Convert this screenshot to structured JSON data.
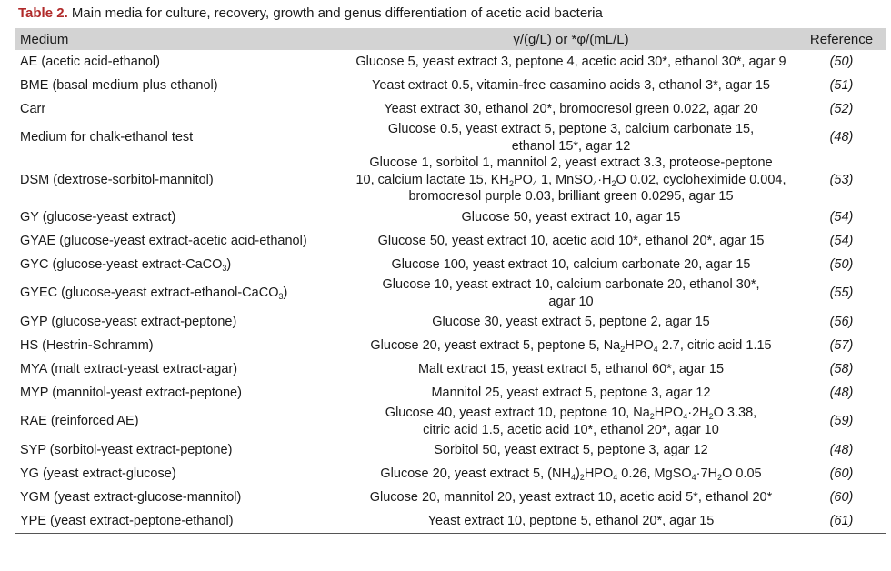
{
  "caption": {
    "label": "Table 2.",
    "text": "Main media for culture, recovery, growth and genus differentiation of acetic acid bacteria"
  },
  "header": {
    "medium": "Medium",
    "composition": "γ/(g/L) or *φ/(mL/L)",
    "reference": "Reference"
  },
  "rows": [
    {
      "medium": [
        "AE (acetic acid-ethanol)"
      ],
      "composition": [
        "Glucose 5, yeast extract 3, peptone 4, acetic acid 30*, ethanol 30*, agar 9"
      ],
      "ref": "(50)"
    },
    {
      "medium": [
        "BME (basal medium plus ethanol)"
      ],
      "composition": [
        "Yeast extract 0.5, vitamin-free casamino acids 3, ethanol 3*, agar 15"
      ],
      "ref": "(51)"
    },
    {
      "medium": [
        "Carr"
      ],
      "composition": [
        "Yeast extract 30, ethanol 20*, bromocresol green 0.022, agar 20"
      ],
      "ref": "(52)"
    },
    {
      "medium": [
        "Medium for chalk-ethanol test"
      ],
      "composition": [
        "Glucose 0.5, yeast extract 5, peptone 3, calcium carbonate 15,",
        "ethanol 15*, agar 12"
      ],
      "ref": "(48)"
    },
    {
      "medium": [
        "DSM (dextrose-sorbitol-mannitol)"
      ],
      "composition": [
        "Glucose 1, sorbitol 1, mannitol 2, yeast extract 3.3, proteose-peptone",
        "10, calcium lactate 15, KH",
        "2",
        "PO",
        "4",
        " 1, MnSO",
        "4",
        "·H",
        "2",
        "O 0.02, cycloheximide 0.004,",
        "bromocresol purple 0.03, brilliant green 0.0295, agar 15"
      ],
      "ref": "(53)"
    },
    {
      "medium": [
        "GY (glucose-yeast extract)"
      ],
      "composition": [
        "Glucose 50, yeast extract 10, agar 15"
      ],
      "ref": "(54)"
    },
    {
      "medium": [
        "GYAE (glucose-yeast extract-acetic acid-ethanol)"
      ],
      "composition": [
        "Glucose 50, yeast extract 10, acetic acid 10*, ethanol 20*, agar 15"
      ],
      "ref": "(54)"
    },
    {
      "medium": [
        "GYC (glucose-yeast extract-CaCO",
        "3",
        ")"
      ],
      "composition": [
        "Glucose 100, yeast extract 10, calcium carbonate 20, agar 15"
      ],
      "ref": "(50)"
    },
    {
      "medium": [
        "GYEC (glucose-yeast extract-ethanol-CaCO",
        "3",
        ")"
      ],
      "composition": [
        "Glucose 10, yeast extract 10, calcium carbonate 20, ethanol 30*,",
        "agar 10"
      ],
      "ref": "(55)"
    },
    {
      "medium": [
        "GYP (glucose-yeast extract-peptone)"
      ],
      "composition": [
        "Glucose 30, yeast extract 5, peptone 2, agar 15"
      ],
      "ref": "(56)"
    },
    {
      "medium": [
        "HS (Hestrin-Schramm)"
      ],
      "composition": [
        "Glucose 20, yeast extract 5, peptone 5, Na",
        "2",
        "HPO",
        "4",
        " 2.7, citric acid 1.15"
      ],
      "ref": "(57)"
    },
    {
      "medium": [
        "MYA (malt extract-yeast extract-agar)"
      ],
      "composition": [
        "Malt extract 15, yeast extract 5, ethanol 60*, agar 15"
      ],
      "ref": "(58)"
    },
    {
      "medium": [
        "MYP (mannitol-yeast extract-peptone)"
      ],
      "composition": [
        "Mannitol 25, yeast extract 5, peptone 3, agar 12"
      ],
      "ref": "(48)"
    },
    {
      "medium": [
        "RAE (reinforced AE)"
      ],
      "composition": [
        "Glucose 40, yeast extract 10, peptone 10, Na",
        "2",
        "HPO",
        "4",
        "·2H",
        "2",
        "O 3.38,",
        "citric acid 1.5, acetic acid 10*, ethanol 20*, agar 10"
      ],
      "ref": "(59)"
    },
    {
      "medium": [
        "SYP (sorbitol-yeast extract-peptone)"
      ],
      "composition": [
        "Sorbitol 50, yeast extract 5, peptone 3, agar 12"
      ],
      "ref": "(48)"
    },
    {
      "medium": [
        "YG (yeast extract-glucose)"
      ],
      "composition": [
        "Glucose 20, yeast extract 5, (NH",
        "4",
        ")",
        "2",
        "HPO",
        "4",
        " 0.26, MgSO",
        "4",
        "·7H",
        "2",
        "O 0.05"
      ],
      "ref": "(60)"
    },
    {
      "medium": [
        "YGM (yeast extract-glucose-mannitol)"
      ],
      "composition": [
        "Glucose 20, mannitol 20, yeast extract 10, acetic acid 5*, ethanol 20*"
      ],
      "ref": "(60)"
    },
    {
      "medium": [
        "YPE (yeast extract-peptone-ethanol)"
      ],
      "composition": [
        "Yeast extract 10, peptone 5, ethanol 20*, agar 15"
      ],
      "ref": "(61)"
    }
  ]
}
